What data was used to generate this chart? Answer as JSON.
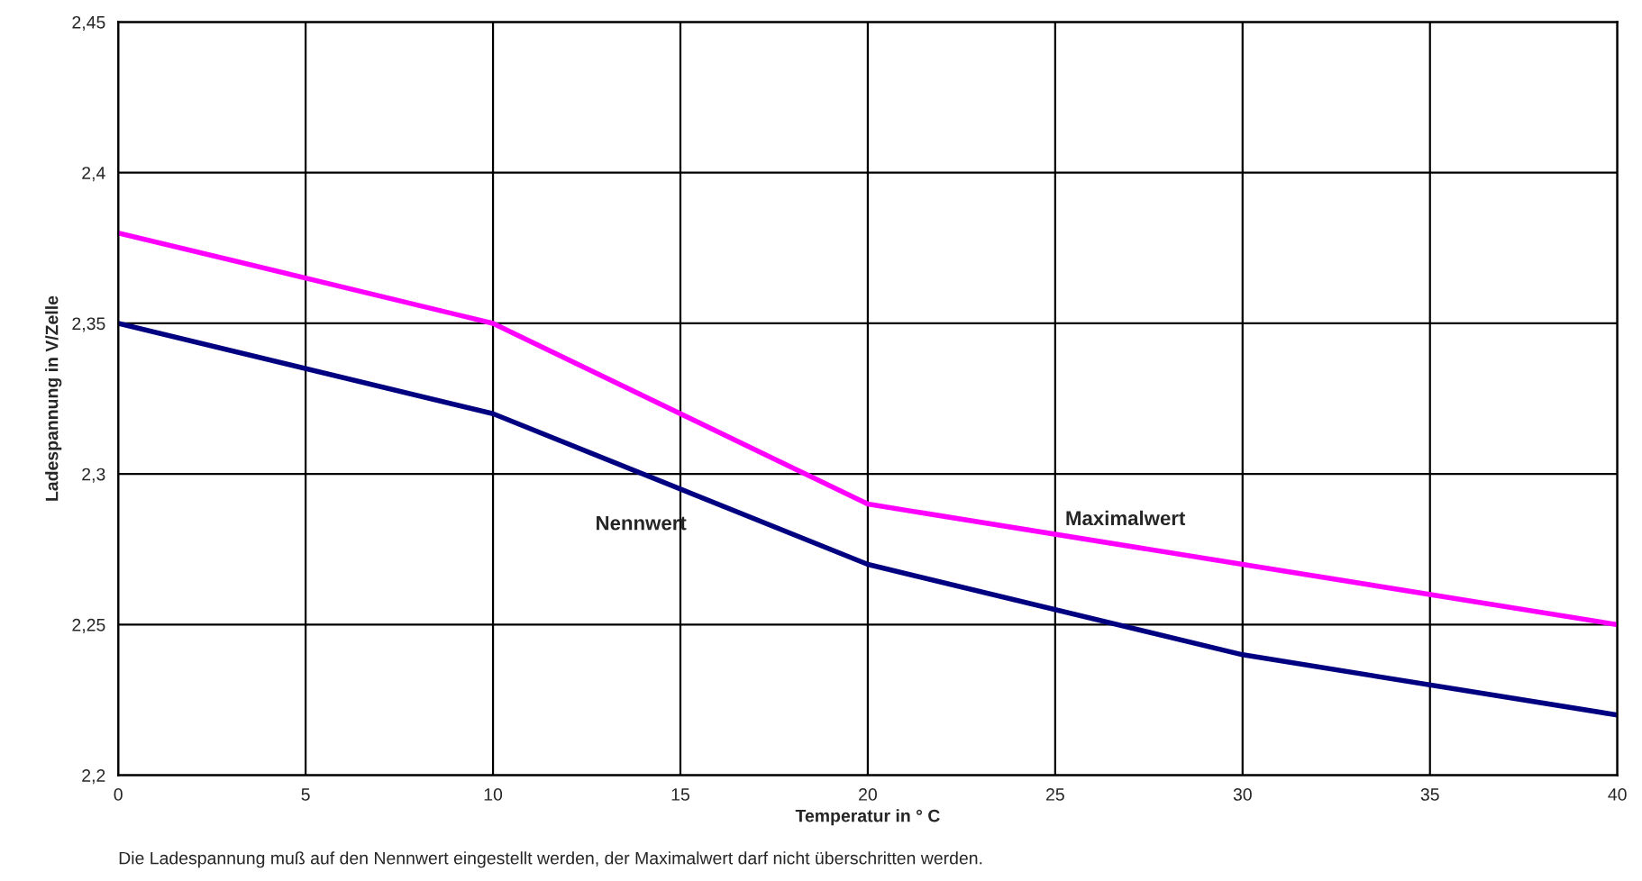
{
  "chart_data": {
    "type": "line",
    "xlabel": "Temperatur in ° C",
    "ylabel": "Ladespannung in V/Zelle",
    "x": [
      0,
      10,
      20,
      30,
      40
    ],
    "series": [
      {
        "name": "Nennwert",
        "color": "#000080",
        "values": [
          2.35,
          2.32,
          2.27,
          2.24,
          2.22
        ]
      },
      {
        "name": "Maximalwert",
        "color": "#ff00ff",
        "values": [
          2.38,
          2.35,
          2.29,
          2.27,
          2.25
        ]
      }
    ],
    "xlim": [
      0,
      40
    ],
    "xticks": [
      0,
      5,
      10,
      15,
      20,
      25,
      30,
      35,
      40
    ],
    "ylim": [
      2.2,
      2.45
    ],
    "yticks": [
      {
        "value": 2.2,
        "label": "2,2"
      },
      {
        "value": 2.25,
        "label": "2,25"
      },
      {
        "value": 2.3,
        "label": "2,3"
      },
      {
        "value": 2.35,
        "label": "2,35"
      },
      {
        "value": 2.4,
        "label": "2,4"
      },
      {
        "value": 2.45,
        "label": "2,45"
      }
    ],
    "grid": true,
    "legend": false,
    "marker": "none",
    "line_style": "solid",
    "annotations": [
      "Die Ladespannung muß auf den Nennwert eingestellt werden, der Maximalwert darf nicht überschritten werden."
    ]
  }
}
